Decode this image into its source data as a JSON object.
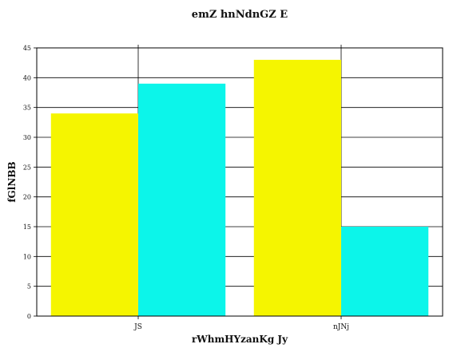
{
  "chart_data": {
    "type": "bar",
    "title": "emZ hnNdnGZ E",
    "xlabel": "rWhmHYzanKg Jy",
    "ylabel": "fGlNBB",
    "categories": [
      "JS",
      "nJNj"
    ],
    "series": [
      {
        "color": "#f5f500",
        "values": [
          34,
          43
        ]
      },
      {
        "color": "#0cf5ea",
        "values": [
          39,
          15
        ]
      }
    ],
    "ylim": [
      0,
      45
    ],
    "yticks": [
      0,
      5,
      10,
      15,
      20,
      25,
      30,
      35,
      40,
      45
    ],
    "grid": true
  }
}
